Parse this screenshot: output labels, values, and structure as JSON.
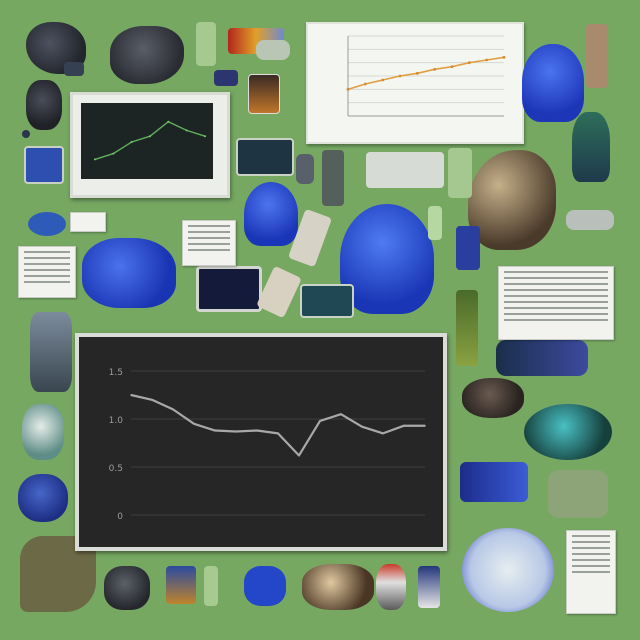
{
  "colors": {
    "background": "#76a862",
    "chart_bg": "#262626",
    "chart_line": "#a8a8a8",
    "blue_object": "#2a4ed8"
  },
  "chart_data": {
    "type": "line",
    "x": [
      0,
      1,
      2,
      3,
      4,
      5,
      6,
      7,
      8,
      9,
      10,
      11,
      12,
      13,
      14
    ],
    "series": [
      {
        "values": [
          1.25,
          1.2,
          1.1,
          0.95,
          0.88,
          0.87,
          0.88,
          0.85,
          0.62,
          0.98,
          1.05,
          0.92,
          0.85,
          0.93,
          0.93
        ]
      }
    ],
    "ylim": [
      0,
      1.5
    ],
    "ytick_labels": [
      "0",
      "0.5",
      "1.0",
      "1.5"
    ],
    "grid": true,
    "legend": "none"
  },
  "small_chart_data": {
    "type": "line",
    "values": [
      1.0,
      1.2,
      1.35,
      1.5,
      1.6,
      1.75,
      1.85,
      2.0,
      2.1,
      2.2
    ],
    "ylim": [
      0,
      3
    ]
  },
  "monitor_chart_data": {
    "type": "line",
    "values": [
      0.2,
      0.3,
      0.5,
      0.6,
      0.85,
      0.7,
      0.6
    ]
  },
  "icons": [
    "rock-icon",
    "blue-statue-icon",
    "tablet-icon",
    "mushroom-icon",
    "stone-sculpture-icon",
    "globe-dish-icon",
    "mug-icon"
  ]
}
